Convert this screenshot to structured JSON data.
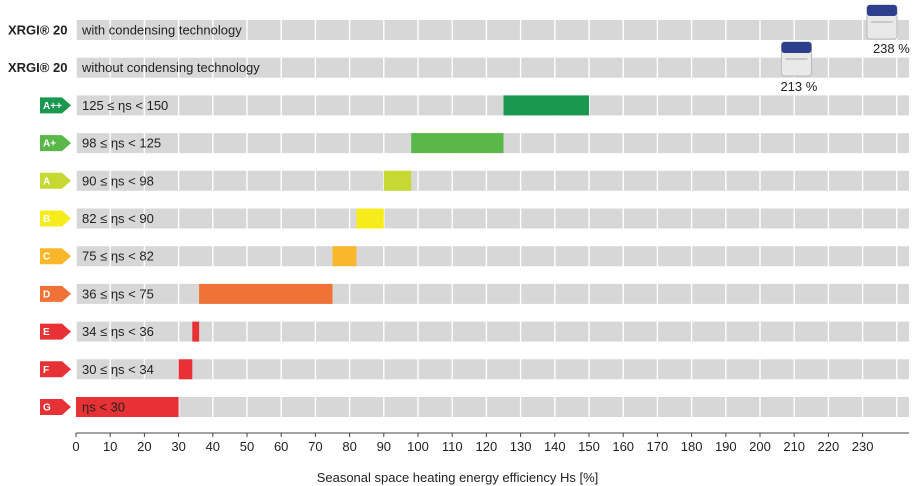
{
  "chart_data": {
    "type": "bar",
    "orientation": "horizontal",
    "x_range": [
      0,
      240
    ],
    "grid": true,
    "xlabel": "Seasonal space heating energy efficiency Hs [%]",
    "ticks": [
      0,
      10,
      20,
      30,
      40,
      50,
      60,
      70,
      80,
      90,
      100,
      110,
      120,
      130,
      140,
      150,
      160,
      170,
      180,
      190,
      200,
      210,
      220,
      230
    ],
    "rows": [
      {
        "left_label": "XRGI® 20",
        "label": "with condensing technology",
        "product_value": 238,
        "product_label": "238 %"
      },
      {
        "left_label": "XRGI® 20",
        "label": "without condensing technology",
        "product_value": 213,
        "product_label": "213 %"
      },
      {
        "class": "A++",
        "label": "125 ≤ ηs < 150",
        "from": 125,
        "to": 150,
        "color": "#1a9850"
      },
      {
        "class": "A+",
        "label": "98 ≤ ηs < 125",
        "from": 98,
        "to": 125,
        "color": "#5ab849"
      },
      {
        "class": "A",
        "label": "90 ≤ ηs < 98",
        "from": 90,
        "to": 98,
        "color": "#c5d932"
      },
      {
        "class": "B",
        "label": "82 ≤ ηs < 90",
        "from": 82,
        "to": 90,
        "color": "#f7ec1b"
      },
      {
        "class": "C",
        "label": "75 ≤ ηs < 82",
        "from": 75,
        "to": 82,
        "color": "#fbb72c"
      },
      {
        "class": "D",
        "label": "36 ≤ ηs < 75",
        "from": 36,
        "to": 75,
        "color": "#ef7237"
      },
      {
        "class": "E",
        "label": "34 ≤ ηs < 36",
        "from": 34,
        "to": 36,
        "color": "#e73134"
      },
      {
        "class": "F",
        "label": "30 ≤ ηs < 34",
        "from": 30,
        "to": 34,
        "color": "#e73134"
      },
      {
        "class": "G",
        "label": "ηs < 30",
        "from": 0,
        "to": 30,
        "color": "#e73134"
      }
    ],
    "colors": {
      "track": "#d7d7d7",
      "grid": "#ffffff",
      "axis": "#444444",
      "unit_top": "#2d3e8c",
      "unit_body": "#e9e9e9"
    }
  }
}
